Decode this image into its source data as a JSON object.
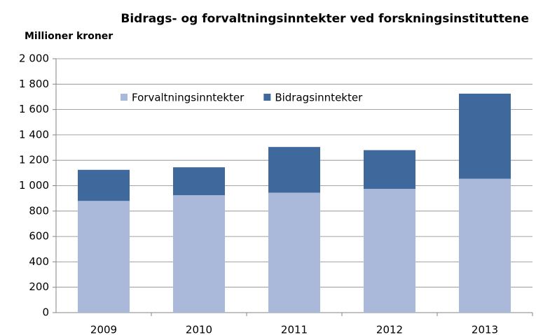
{
  "chart_data": {
    "type": "stacked-bar",
    "title": "Bidrags- og forvaltningsinntekter ved forskningsinstituttene",
    "subtitle": "Millioner kroner",
    "categories": [
      "2009",
      "2010",
      "2011",
      "2012",
      "2013"
    ],
    "series": [
      {
        "name": "Forvaltningsinntekter",
        "color": "#aab9d9",
        "values": [
          880,
          925,
          945,
          975,
          1055
        ]
      },
      {
        "name": "Bidragsinntekter",
        "color": "#3f689c",
        "values": [
          245,
          220,
          360,
          305,
          670
        ]
      }
    ],
    "ylim": [
      0,
      2000
    ],
    "yticks": [
      0,
      200,
      400,
      600,
      800,
      {
        "value": 1000,
        "label": "1 000"
      },
      {
        "value": 1200,
        "label": "1 200"
      },
      {
        "value": 1400,
        "label": "1 400"
      },
      {
        "value": 1600,
        "label": "1 600"
      },
      {
        "value": 1800,
        "label": "1 800"
      },
      {
        "value": 2000,
        "label": "2 000"
      }
    ],
    "grid": true,
    "legend": "top"
  }
}
